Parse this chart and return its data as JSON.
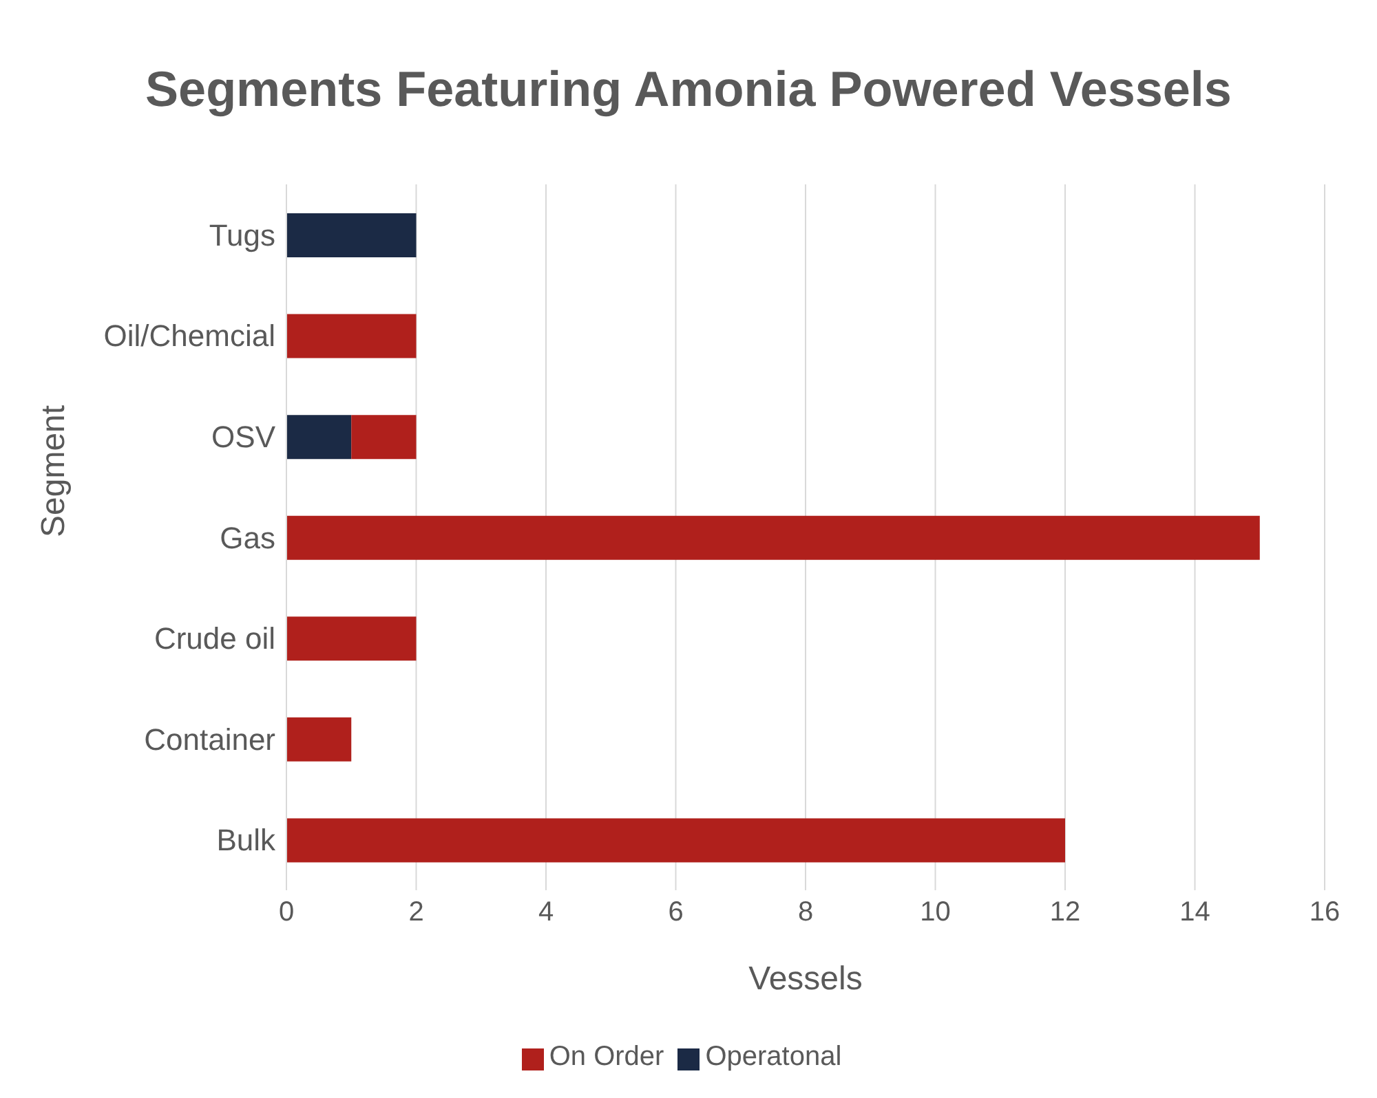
{
  "chart_data": {
    "type": "bar",
    "orientation": "horizontal",
    "stacked": true,
    "title": "Segments Featuring Amonia Powered Vessels",
    "xlabel": "Vessels",
    "ylabel": "Segment",
    "categories": [
      "Tugs",
      "Oil/Chemcial",
      "OSV",
      "Gas",
      "Crude oil",
      "Container",
      "Bulk"
    ],
    "series": [
      {
        "name": "Operatonal",
        "color": "#1b2a45",
        "values": [
          2,
          null,
          1,
          null,
          null,
          null,
          null
        ]
      },
      {
        "name": "On Order",
        "color": "#b0201c",
        "values": [
          null,
          2,
          1,
          15,
          2,
          1,
          12
        ]
      }
    ],
    "xlim": [
      0,
      16
    ],
    "xticks": [
      0,
      2,
      4,
      6,
      8,
      10,
      12,
      14,
      16
    ],
    "grid": "x",
    "legend": "bottom"
  }
}
